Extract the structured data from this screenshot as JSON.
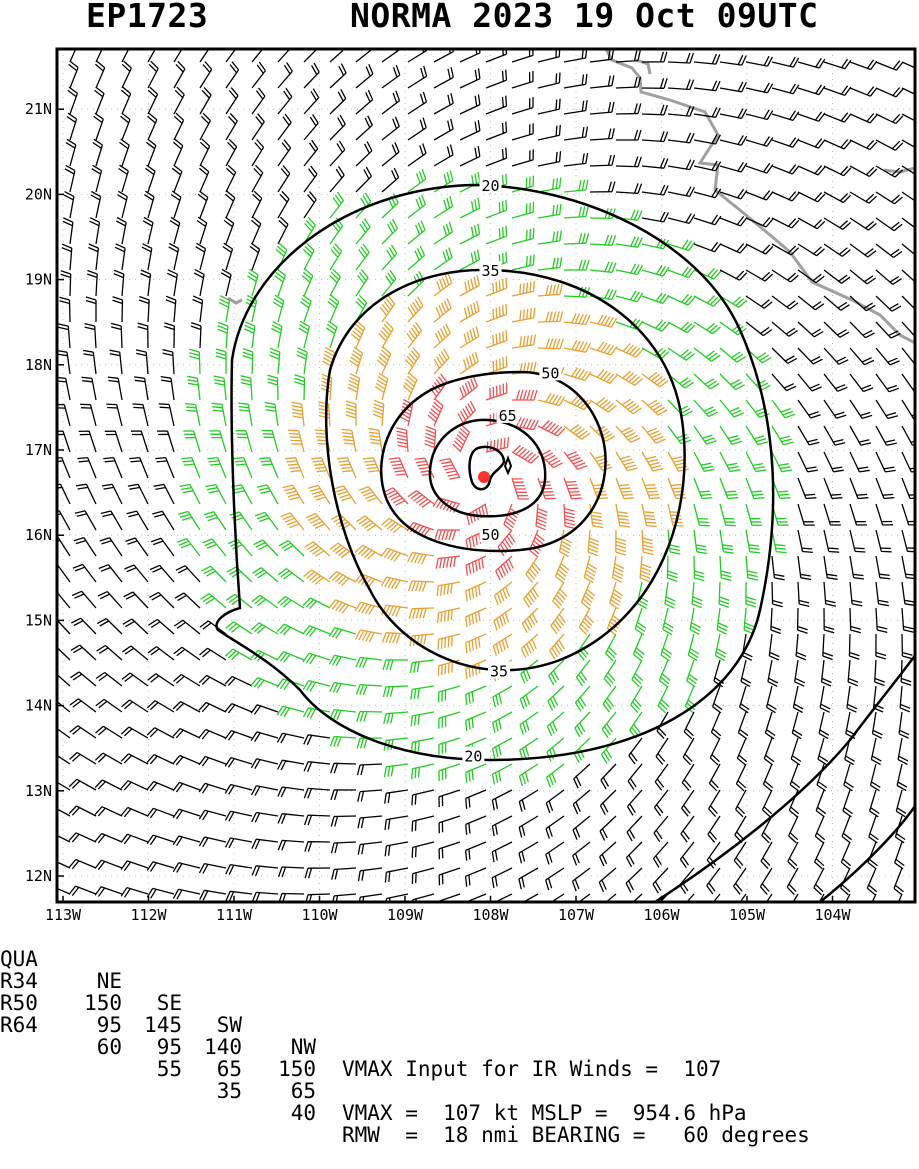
{
  "title": {
    "storm_id": "EP1723",
    "storm_info": "NORMA 2023 19 Oct 09UTC"
  },
  "axes": {
    "lon_labels": [
      "113W",
      "112W",
      "111W",
      "110W",
      "109W",
      "108W",
      "107W",
      "106W",
      "105W",
      "104W"
    ],
    "lat_labels": [
      "21N",
      "20N",
      "19N",
      "18N",
      "17N",
      "16N",
      "15N",
      "14N",
      "13N",
      "12N"
    ]
  },
  "map": {
    "center": {
      "lon": -108.1,
      "lat": 16.7
    },
    "contour_labels": [
      {
        "text": "20",
        "lon": -108.0,
        "lat": 20.1
      },
      {
        "text": "35",
        "lon": -108.0,
        "lat": 19.1
      },
      {
        "text": "50",
        "lon": -107.3,
        "lat": 17.9
      },
      {
        "text": "65",
        "lon": -107.8,
        "lat": 17.4
      },
      {
        "text": "50",
        "lon": -108.0,
        "lat": 16.0
      },
      {
        "text": "35",
        "lon": -107.9,
        "lat": 14.4
      },
      {
        "text": "20",
        "lon": -108.2,
        "lat": 13.4
      }
    ],
    "colors": {
      "barb_low": "#000000",
      "barb_34": "#22cc22",
      "barb_50": "#e8a030",
      "barb_64": "#f05050",
      "coast": "#a0a0a0",
      "center": "#ff3030"
    }
  },
  "info": {
    "quad_header": [
      "QUA",
      "NE",
      "SE",
      "SW",
      "NW"
    ],
    "r34": [
      "R34",
      "150",
      "145",
      "140",
      "150"
    ],
    "r50": [
      "R50",
      "95",
      "95",
      "65",
      "65"
    ],
    "r64": [
      "R64",
      "60",
      "55",
      "35",
      "40"
    ],
    "vmax_input": "VMAX Input for IR Winds =  107",
    "vmax_mslp": "VMAX =  107 kt MSLP =  954.6 hPa",
    "rmw_bearing": "RMW  =  18 nmi BEARING =   60 degrees"
  }
}
